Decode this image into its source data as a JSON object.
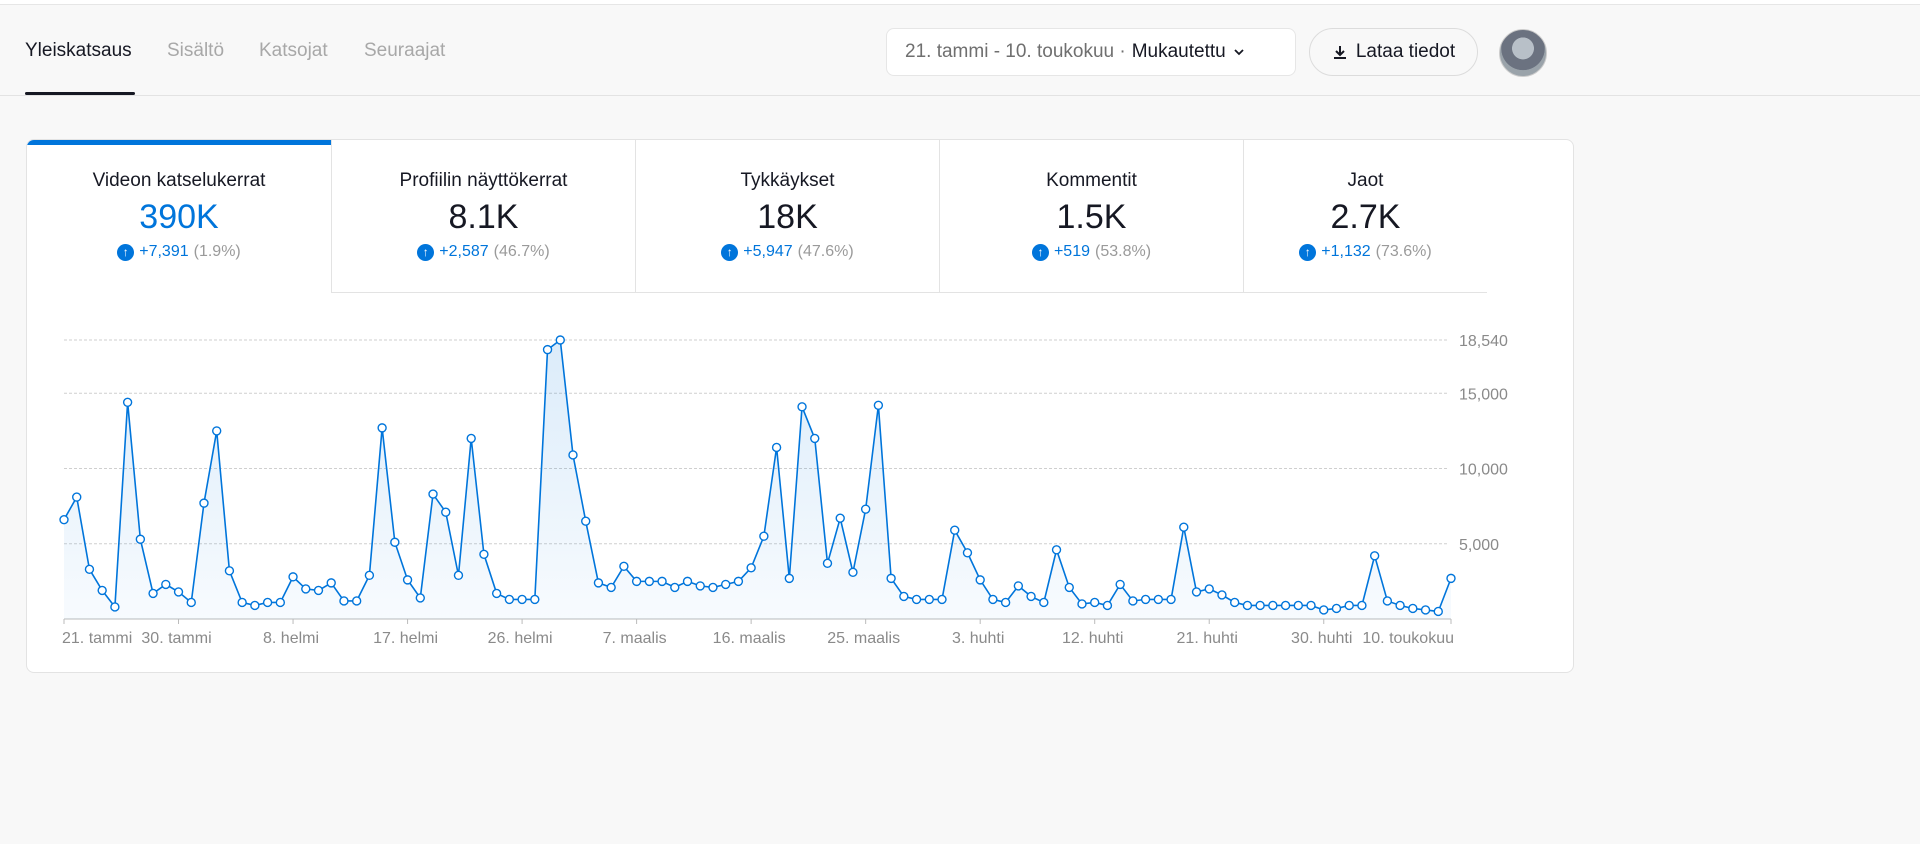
{
  "tabs": [
    {
      "label": "Yleiskatsaus",
      "active": true
    },
    {
      "label": "Sisältö"
    },
    {
      "label": "Katsojat"
    },
    {
      "label": "Seuraajat"
    }
  ],
  "date_picker": {
    "range": "21. tammi - 10. toukokuu ·",
    "mode": "Mukautettu",
    "icon": "chevron-down-icon"
  },
  "download": {
    "label": "Lataa tiedot",
    "icon": "download-icon"
  },
  "accent": "#0075db",
  "kpis": [
    {
      "label": "Videon katselukerrat",
      "value": "390K",
      "delta": "+7,391",
      "pct": "(1.9%)"
    },
    {
      "label": "Profiilin näyttökerrat",
      "value": "8.1K",
      "delta": "+2,587",
      "pct": "(46.7%)"
    },
    {
      "label": "Tykkäykset",
      "value": "18K",
      "delta": "+5,947",
      "pct": "(47.6%)"
    },
    {
      "label": "Kommentit",
      "value": "1.5K",
      "delta": "+519",
      "pct": "(53.8%)"
    },
    {
      "label": "Jaot",
      "value": "2.7K",
      "delta": "+1,132",
      "pct": "(73.6%)"
    }
  ],
  "chart_data": {
    "type": "area",
    "ylim": [
      0,
      18540
    ],
    "yticks": [
      {
        "v": 5000,
        "label": "5,000"
      },
      {
        "v": 10000,
        "label": "10,000"
      },
      {
        "v": 15000,
        "label": "15,000"
      },
      {
        "v": 18540,
        "label": "18,540"
      }
    ],
    "xticks": [
      {
        "i": 0,
        "label": "21. tammi"
      },
      {
        "i": 9,
        "label": "30. tammi"
      },
      {
        "i": 18,
        "label": "8. helmi"
      },
      {
        "i": 27,
        "label": "17. helmi"
      },
      {
        "i": 36,
        "label": "26. helmi"
      },
      {
        "i": 45,
        "label": "7. maalis"
      },
      {
        "i": 54,
        "label": "16. maalis"
      },
      {
        "i": 63,
        "label": "25. maalis"
      },
      {
        "i": 72,
        "label": "3. huhti"
      },
      {
        "i": 81,
        "label": "12. huhti"
      },
      {
        "i": 90,
        "label": "21. huhti"
      },
      {
        "i": 99,
        "label": "30. huhti"
      },
      {
        "i": 109,
        "label": "10. toukokuu"
      }
    ],
    "grid": true,
    "values": [
      6600,
      8100,
      3300,
      1900,
      800,
      14400,
      5300,
      1700,
      2300,
      1800,
      1100,
      7700,
      12500,
      3200,
      1100,
      900,
      1100,
      1100,
      2800,
      2000,
      1900,
      2400,
      1200,
      1200,
      2900,
      12700,
      5100,
      2600,
      1400,
      8300,
      7100,
      2900,
      12000,
      4300,
      1700,
      1300,
      1300,
      1300,
      17900,
      18540,
      10900,
      6500,
      2400,
      2100,
      3500,
      2500,
      2500,
      2500,
      2100,
      2500,
      2200,
      2100,
      2300,
      2500,
      3400,
      5500,
      11400,
      2700,
      14100,
      12000,
      3700,
      6700,
      3100,
      7300,
      14200,
      2700,
      1500,
      1300,
      1300,
      1300,
      5900,
      4400,
      2600,
      1300,
      1100,
      2200,
      1500,
      1100,
      4600,
      2100,
      1000,
      1100,
      900,
      2300,
      1200,
      1300,
      1300,
      1300,
      6100,
      1800,
      2000,
      1600,
      1100,
      900,
      900,
      900,
      900,
      900,
      900,
      600,
      700,
      900,
      900,
      4200,
      1200,
      900,
      700,
      600,
      500,
      2700
    ]
  }
}
